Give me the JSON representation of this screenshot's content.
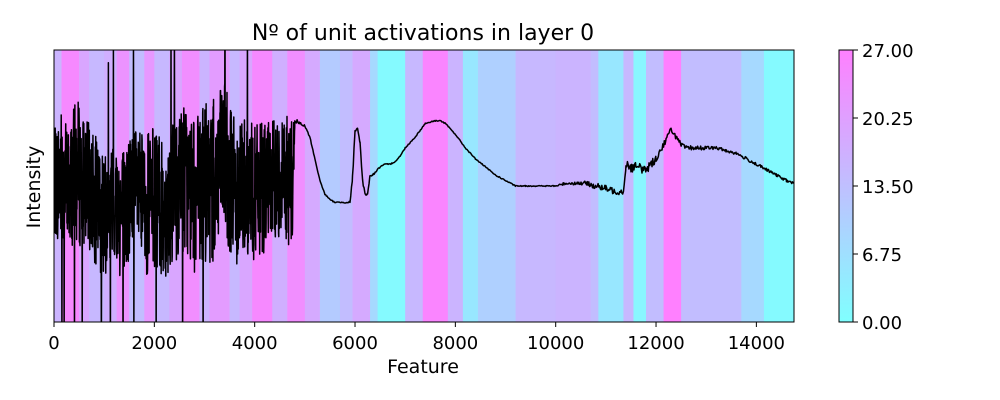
{
  "chart_data": {
    "type": "line",
    "title": "Nº of unit activations in layer 0",
    "xlabel": "Feature",
    "ylabel": "Intensity",
    "xlim": [
      0,
      14750
    ],
    "ylim": [
      0,
      1
    ],
    "x_ticks": [
      0,
      2000,
      4000,
      6000,
      8000,
      10000,
      12000,
      14000
    ],
    "x_tick_labels": [
      "0",
      "2000",
      "4000",
      "6000",
      "8000",
      "10000",
      "12000",
      "14000"
    ],
    "y_ticks_shown": false,
    "grid": false,
    "colorbar": {
      "min": 0,
      "max": 27,
      "ticks": [
        0,
        6.75,
        13.5,
        20.25,
        27
      ],
      "tick_labels": [
        "0.00",
        "6.75",
        "13.50",
        "20.25",
        "27.00"
      ],
      "color_low": "#80ffff",
      "color_high": "#ff80ff"
    },
    "background_bands": [
      {
        "x0": 0,
        "x1": 150,
        "value": 16
      },
      {
        "x0": 150,
        "x1": 500,
        "value": 25
      },
      {
        "x0": 500,
        "x1": 700,
        "value": 19
      },
      {
        "x0": 700,
        "x1": 1000,
        "value": 15
      },
      {
        "x0": 1000,
        "x1": 1250,
        "value": 17
      },
      {
        "x0": 1250,
        "x1": 1500,
        "value": 23
      },
      {
        "x0": 1500,
        "x1": 1800,
        "value": 14
      },
      {
        "x0": 1800,
        "x1": 2000,
        "value": 22
      },
      {
        "x0": 2000,
        "x1": 2300,
        "value": 15
      },
      {
        "x0": 2300,
        "x1": 2550,
        "value": 19
      },
      {
        "x0": 2550,
        "x1": 2900,
        "value": 24
      },
      {
        "x0": 2900,
        "x1": 3100,
        "value": 16
      },
      {
        "x0": 3100,
        "x1": 3500,
        "value": 21
      },
      {
        "x0": 3500,
        "x1": 3700,
        "value": 15
      },
      {
        "x0": 3700,
        "x1": 3950,
        "value": 19
      },
      {
        "x0": 3950,
        "x1": 4350,
        "value": 25
      },
      {
        "x0": 4350,
        "x1": 4650,
        "value": 17
      },
      {
        "x0": 4650,
        "x1": 5000,
        "value": 24
      },
      {
        "x0": 5000,
        "x1": 5300,
        "value": 18
      },
      {
        "x0": 5300,
        "x1": 5700,
        "value": 11
      },
      {
        "x0": 5700,
        "x1": 5950,
        "value": 14
      },
      {
        "x0": 5950,
        "x1": 6300,
        "value": 18
      },
      {
        "x0": 6300,
        "x1": 6450,
        "value": 8
      },
      {
        "x0": 6450,
        "x1": 7000,
        "value": 1
      },
      {
        "x0": 7000,
        "x1": 7350,
        "value": 15
      },
      {
        "x0": 7350,
        "x1": 7850,
        "value": 26
      },
      {
        "x0": 7850,
        "x1": 8150,
        "value": 16
      },
      {
        "x0": 8150,
        "x1": 8450,
        "value": 5
      },
      {
        "x0": 8450,
        "x1": 9200,
        "value": 10
      },
      {
        "x0": 9200,
        "x1": 10000,
        "value": 15
      },
      {
        "x0": 10000,
        "x1": 10700,
        "value": 16
      },
      {
        "x0": 10700,
        "x1": 10850,
        "value": 14
      },
      {
        "x0": 10850,
        "x1": 11350,
        "value": 5
      },
      {
        "x0": 11350,
        "x1": 11550,
        "value": 15
      },
      {
        "x0": 11550,
        "x1": 11800,
        "value": 2
      },
      {
        "x0": 11800,
        "x1": 12150,
        "value": 14
      },
      {
        "x0": 12150,
        "x1": 12500,
        "value": 27
      },
      {
        "x0": 12500,
        "x1": 13700,
        "value": 14
      },
      {
        "x0": 13700,
        "x1": 14150,
        "value": 8
      },
      {
        "x0": 14150,
        "x1": 14750,
        "value": 1
      }
    ],
    "series": [
      {
        "color": "#000000",
        "x": [
          0,
          150,
          300,
          450,
          600,
          800,
          1000,
          1200,
          1400,
          1600,
          1800,
          2000,
          2200,
          2400,
          2600,
          2800,
          3000,
          3200,
          3400,
          3600,
          3800,
          4000,
          4200,
          4400,
          4600,
          4750,
          4800,
          4900,
          5000,
          5100,
          5200,
          5300,
          5400,
          5500,
          5600,
          5750,
          5900,
          5950,
          6000,
          6050,
          6100,
          6150,
          6200,
          6250,
          6300,
          6350,
          6400,
          6500,
          6600,
          6700,
          6800,
          6900,
          7000,
          7200,
          7400,
          7600,
          7700,
          7800,
          8000,
          8200,
          8400,
          8600,
          8800,
          9000,
          9200,
          9400,
          9600,
          9800,
          10000,
          10200,
          10400,
          10600,
          10800,
          11000,
          11200,
          11350,
          11400,
          11500,
          11600,
          11800,
          12000,
          12200,
          12300,
          12400,
          12500,
          12600,
          12800,
          13000,
          13200,
          13400,
          13600,
          13800,
          14000,
          14200,
          14400,
          14600,
          14750
        ],
        "y_center": [
          0.5,
          0.54,
          0.5,
          0.55,
          0.52,
          0.46,
          0.38,
          0.44,
          0.4,
          0.5,
          0.42,
          0.46,
          0.4,
          0.48,
          0.54,
          0.46,
          0.5,
          0.52,
          0.6,
          0.48,
          0.52,
          0.46,
          0.5,
          0.52,
          0.54,
          0.5,
          0.74,
          0.73,
          0.72,
          0.68,
          0.6,
          0.52,
          0.47,
          0.45,
          0.44,
          0.44,
          0.44,
          0.53,
          0.7,
          0.71,
          0.66,
          0.52,
          0.47,
          0.47,
          0.54,
          0.54,
          0.55,
          0.57,
          0.58,
          0.58,
          0.59,
          0.61,
          0.64,
          0.68,
          0.73,
          0.74,
          0.74,
          0.73,
          0.69,
          0.64,
          0.6,
          0.57,
          0.54,
          0.52,
          0.5,
          0.5,
          0.5,
          0.5,
          0.5,
          0.51,
          0.51,
          0.51,
          0.5,
          0.49,
          0.48,
          0.48,
          0.58,
          0.57,
          0.57,
          0.56,
          0.6,
          0.67,
          0.71,
          0.68,
          0.65,
          0.64,
          0.64,
          0.64,
          0.64,
          0.63,
          0.62,
          0.6,
          0.58,
          0.56,
          0.54,
          0.52,
          0.51
        ],
        "y_noise": [
          0.2,
          0.26,
          0.22,
          0.28,
          0.24,
          0.24,
          0.22,
          0.24,
          0.26,
          0.22,
          0.26,
          0.26,
          0.24,
          0.26,
          0.28,
          0.28,
          0.3,
          0.3,
          0.28,
          0.28,
          0.26,
          0.26,
          0.24,
          0.22,
          0.22,
          0.26,
          0.01,
          0.006,
          0.004,
          0.003,
          0.002,
          0.002,
          0.002,
          0.002,
          0.002,
          0.002,
          0.004,
          0.01,
          0.005,
          0.004,
          0.004,
          0.006,
          0.004,
          0.004,
          0.004,
          0.004,
          0.004,
          0.003,
          0.002,
          0.002,
          0.002,
          0.002,
          0.002,
          0.002,
          0.002,
          0.002,
          0.002,
          0.002,
          0.002,
          0.002,
          0.002,
          0.002,
          0.002,
          0.002,
          0.002,
          0.002,
          0.002,
          0.002,
          0.002,
          0.006,
          0.006,
          0.008,
          0.012,
          0.012,
          0.012,
          0.012,
          0.02,
          0.02,
          0.02,
          0.016,
          0.014,
          0.01,
          0.008,
          0.01,
          0.01,
          0.008,
          0.008,
          0.006,
          0.006,
          0.006,
          0.006,
          0.006,
          0.006,
          0.005,
          0.005,
          0.005,
          0.005
        ]
      }
    ]
  }
}
